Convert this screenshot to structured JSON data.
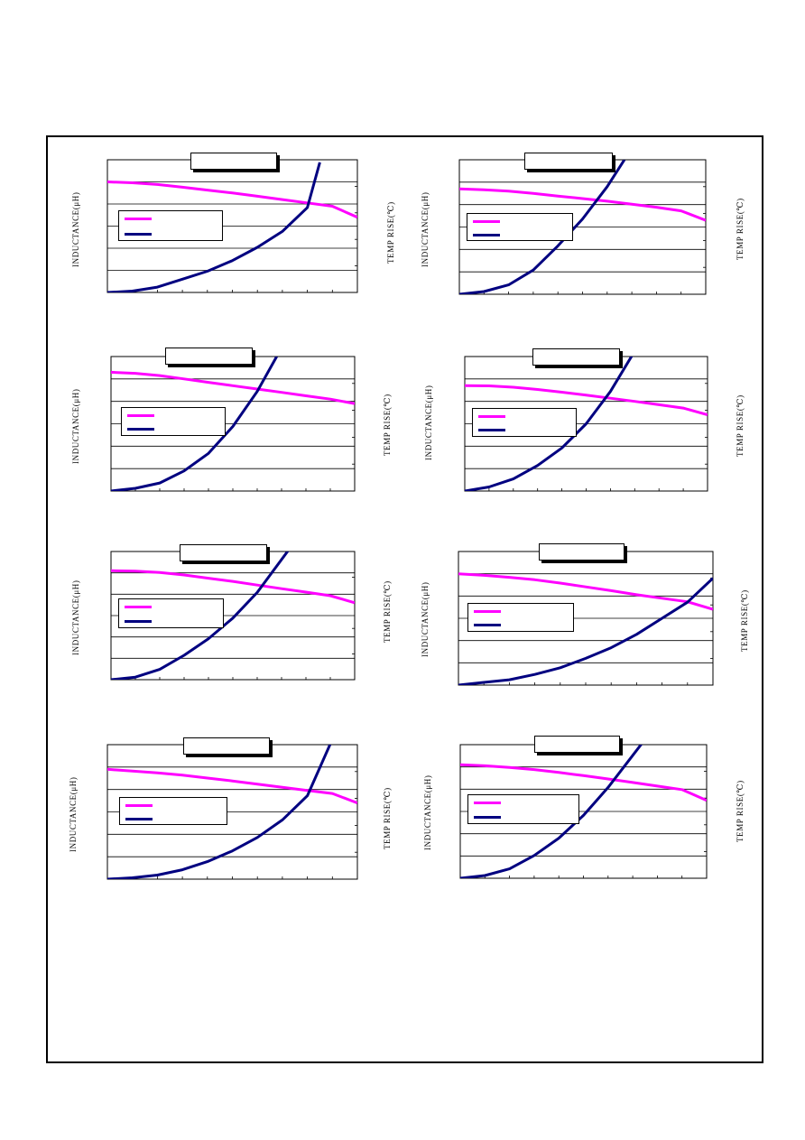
{
  "labels": {
    "left_axis": "INDUCTANCE(μH)",
    "right_axis": "TEMP RISE(℃)"
  },
  "colors": {
    "inductance": "#ff00ff",
    "temp_rise": "#000080",
    "grid": "#000000",
    "frame": "#000000"
  },
  "chart_data": [
    {
      "type": "line",
      "title": "",
      "xlabel": "",
      "ylabel": "INDUCTANCE(μH)",
      "y2label": "TEMP RISE(℃)",
      "xlim": [
        0,
        10
      ],
      "ylim": [
        0,
        6
      ],
      "y2lim": [
        0,
        5
      ],
      "series": [
        {
          "axis": "left",
          "x": [
            0,
            1,
            2,
            3,
            4,
            5,
            6,
            7,
            8,
            9,
            10
          ],
          "values": [
            5.0,
            4.96,
            4.88,
            4.76,
            4.63,
            4.5,
            4.35,
            4.2,
            4.05,
            3.9,
            3.4
          ]
        },
        {
          "axis": "right",
          "x": [
            0,
            1,
            2,
            3,
            4,
            5,
            6,
            7,
            8,
            8.5
          ],
          "values": [
            0,
            0.05,
            0.2,
            0.5,
            0.8,
            1.2,
            1.7,
            2.3,
            3.2,
            4.9
          ]
        }
      ]
    },
    {
      "type": "line",
      "title": "",
      "xlabel": "",
      "ylabel": "INDUCTANCE(μH)",
      "y2label": "TEMP RISE(℃)",
      "xlim": [
        0,
        10
      ],
      "ylim": [
        0,
        6
      ],
      "y2lim": [
        0,
        5
      ],
      "series": [
        {
          "axis": "left",
          "x": [
            0,
            1,
            2,
            3,
            4,
            5,
            6,
            7,
            8,
            9,
            10
          ],
          "values": [
            4.7,
            4.66,
            4.6,
            4.5,
            4.38,
            4.27,
            4.15,
            4.02,
            3.88,
            3.72,
            3.3
          ]
        },
        {
          "axis": "right",
          "x": [
            0,
            1,
            2,
            3,
            4,
            5,
            6,
            6.7
          ],
          "values": [
            0,
            0.1,
            0.35,
            0.9,
            1.8,
            2.8,
            4.0,
            5.0
          ]
        }
      ]
    },
    {
      "type": "line",
      "title": "",
      "xlabel": "",
      "ylabel": "INDUCTANCE(μH)",
      "y2label": "TEMP RISE(℃)",
      "xlim": [
        0,
        10
      ],
      "ylim": [
        0,
        6
      ],
      "y2lim": [
        0,
        5
      ],
      "series": [
        {
          "axis": "left",
          "x": [
            0,
            1,
            2,
            3,
            4,
            5,
            6,
            7,
            8,
            9,
            10
          ],
          "values": [
            5.3,
            5.25,
            5.15,
            5.0,
            4.85,
            4.7,
            4.55,
            4.4,
            4.25,
            4.1,
            3.9
          ]
        },
        {
          "axis": "right",
          "x": [
            0,
            1,
            2,
            3,
            4,
            5,
            6,
            6.8
          ],
          "values": [
            0,
            0.1,
            0.3,
            0.75,
            1.4,
            2.4,
            3.7,
            5.0
          ]
        }
      ]
    },
    {
      "type": "line",
      "title": "",
      "xlabel": "",
      "ylabel": "INDUCTANCE(μH)",
      "y2label": "TEMP RISE(℃)",
      "xlim": [
        0,
        10
      ],
      "ylim": [
        0,
        6
      ],
      "y2lim": [
        0,
        5
      ],
      "series": [
        {
          "axis": "left",
          "x": [
            0,
            1,
            2,
            3,
            4,
            5,
            6,
            7,
            8,
            9,
            10
          ],
          "values": [
            4.7,
            4.69,
            4.63,
            4.53,
            4.41,
            4.28,
            4.14,
            4.0,
            3.85,
            3.7,
            3.4
          ]
        },
        {
          "axis": "right",
          "x": [
            0,
            1,
            2,
            3,
            4,
            5,
            6,
            7
          ],
          "values": [
            0,
            0.15,
            0.45,
            0.95,
            1.6,
            2.5,
            3.7,
            5.2
          ]
        }
      ]
    },
    {
      "type": "line",
      "title": "",
      "xlabel": "",
      "ylabel": "INDUCTANCE(μH)",
      "y2label": "TEMP RISE(℃)",
      "xlim": [
        0,
        10
      ],
      "ylim": [
        0,
        6
      ],
      "y2lim": [
        0,
        5
      ],
      "series": [
        {
          "axis": "left",
          "x": [
            0,
            1,
            2,
            3,
            4,
            5,
            6,
            7,
            8,
            9,
            10
          ],
          "values": [
            5.1,
            5.08,
            5.02,
            4.9,
            4.75,
            4.6,
            4.43,
            4.26,
            4.1,
            3.93,
            3.6
          ]
        },
        {
          "axis": "right",
          "x": [
            0,
            1,
            2,
            3,
            4,
            5,
            6,
            7.4
          ],
          "values": [
            0,
            0.1,
            0.4,
            0.95,
            1.6,
            2.4,
            3.4,
            5.2
          ]
        }
      ]
    },
    {
      "type": "line",
      "title": "",
      "xlabel": "",
      "ylabel": "INDUCTANCE(μH)",
      "y2label": "TEMP RISE(℃)",
      "xlim": [
        0,
        10
      ],
      "ylim": [
        0,
        6
      ],
      "y2lim": [
        0,
        5
      ],
      "series": [
        {
          "axis": "left",
          "x": [
            0,
            1,
            2,
            3,
            4,
            5,
            6,
            7,
            8,
            9,
            10
          ],
          "values": [
            5.0,
            4.93,
            4.84,
            4.73,
            4.58,
            4.41,
            4.24,
            4.06,
            3.9,
            3.74,
            3.4
          ]
        },
        {
          "axis": "right",
          "x": [
            0,
            1,
            2,
            3,
            4,
            5,
            6,
            7,
            8,
            9,
            10
          ],
          "values": [
            0,
            0.1,
            0.2,
            0.4,
            0.65,
            1.0,
            1.4,
            1.9,
            2.5,
            3.1,
            4.0
          ]
        }
      ]
    },
    {
      "type": "line",
      "title": "",
      "xlabel": "",
      "ylabel": "INDUCTANCE(μH)",
      "y2label": "TEMP RISE(℃)",
      "xlim": [
        0,
        10
      ],
      "ylim": [
        0,
        6
      ],
      "y2lim": [
        0,
        5
      ],
      "series": [
        {
          "axis": "left",
          "x": [
            0,
            1,
            2,
            3,
            4,
            5,
            6,
            7,
            8,
            9,
            10
          ],
          "values": [
            4.9,
            4.82,
            4.74,
            4.64,
            4.51,
            4.38,
            4.24,
            4.1,
            3.96,
            3.82,
            3.4
          ]
        },
        {
          "axis": "right",
          "x": [
            0,
            1,
            2,
            3,
            4,
            5,
            6,
            7,
            8,
            9
          ],
          "values": [
            0,
            0.05,
            0.15,
            0.35,
            0.65,
            1.05,
            1.55,
            2.2,
            3.1,
            5.2
          ]
        }
      ]
    },
    {
      "type": "line",
      "title": "",
      "xlabel": "",
      "ylabel": "INDUCTANCE(μH)",
      "y2label": "TEMP RISE(℃)",
      "xlim": [
        0,
        10
      ],
      "ylim": [
        0,
        6
      ],
      "y2lim": [
        0,
        5
      ],
      "series": [
        {
          "axis": "left",
          "x": [
            0,
            1,
            2,
            3,
            4,
            5,
            6,
            7,
            8,
            9,
            10
          ],
          "values": [
            5.1,
            5.05,
            4.98,
            4.88,
            4.75,
            4.61,
            4.46,
            4.3,
            4.14,
            3.98,
            3.5
          ]
        },
        {
          "axis": "right",
          "x": [
            0,
            1,
            2,
            3,
            4,
            5,
            6,
            7.5
          ],
          "values": [
            0,
            0.1,
            0.35,
            0.85,
            1.5,
            2.35,
            3.4,
            5.2
          ]
        }
      ]
    }
  ]
}
